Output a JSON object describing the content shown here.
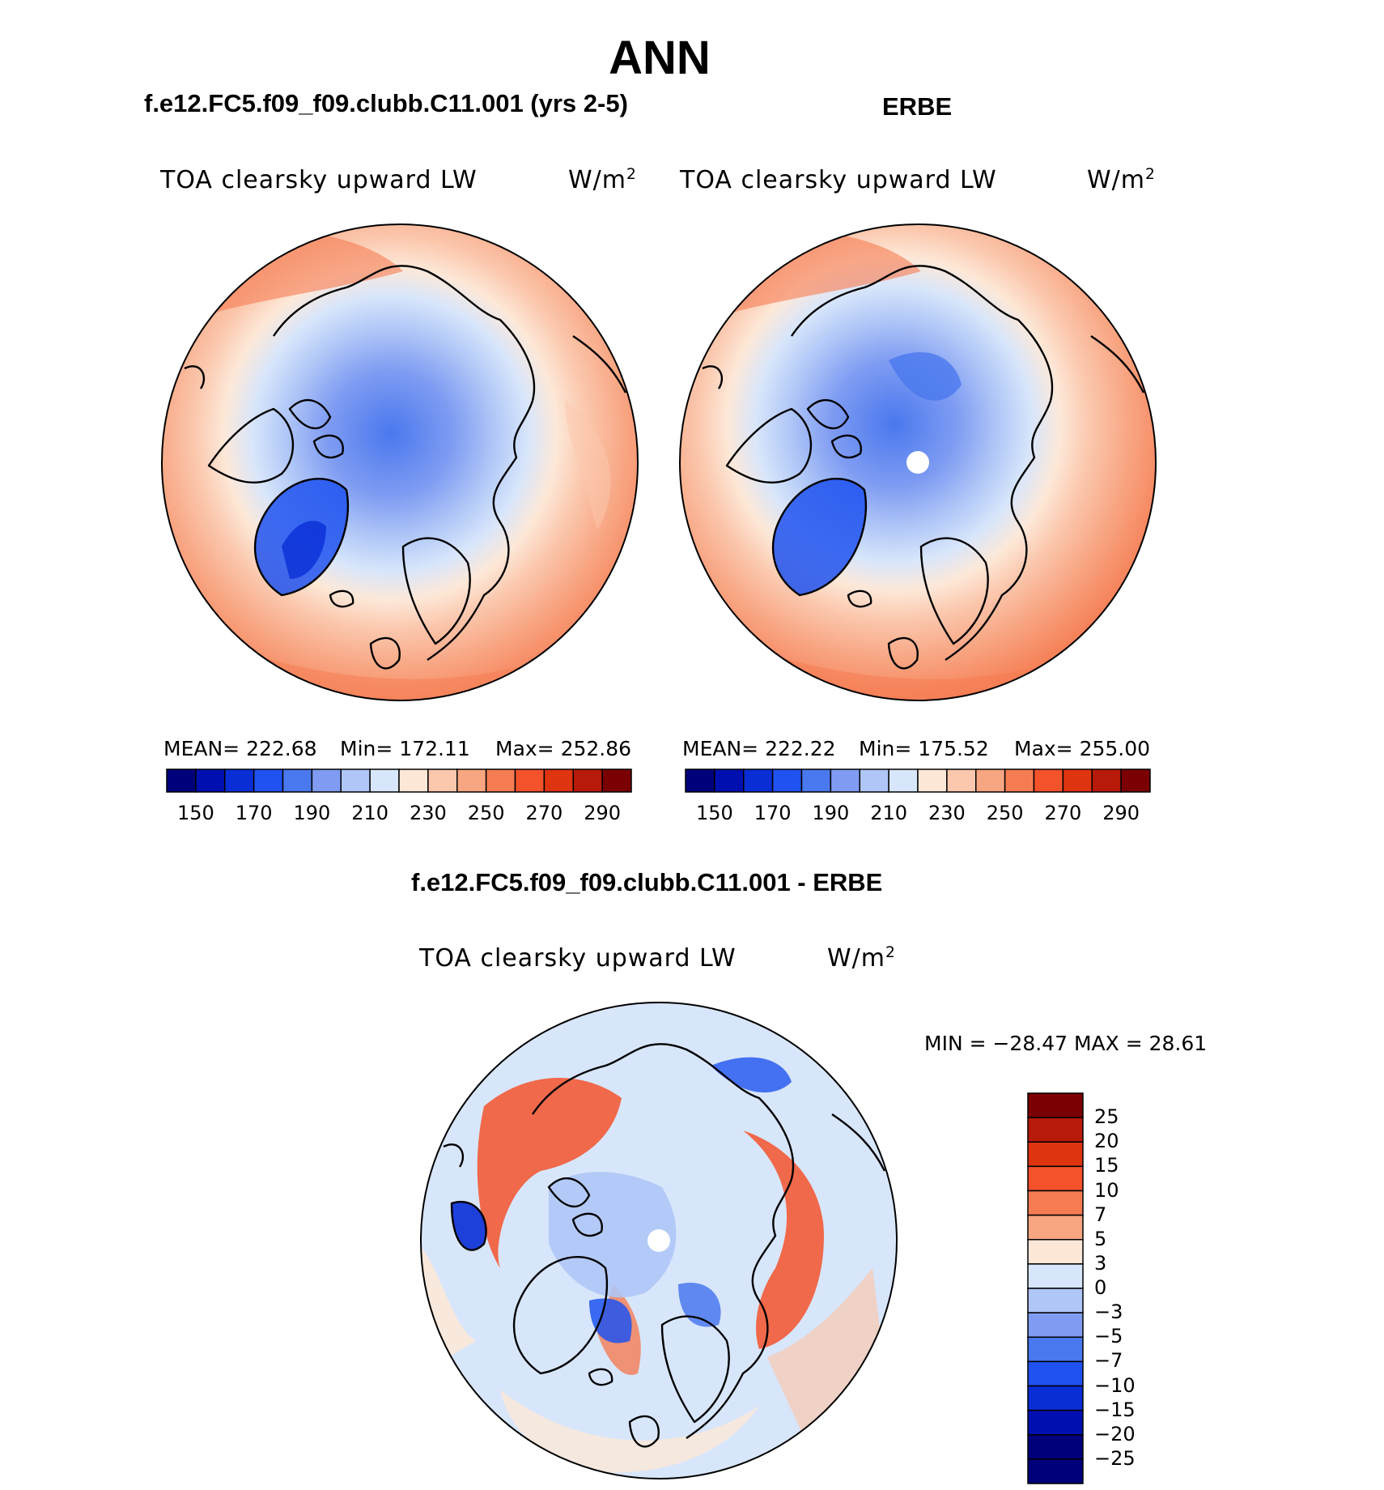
{
  "title": "ANN",
  "panels": [
    {
      "subtitle": "f.e12.FC5.f09_f09.clubb.C11.001 (yrs 2-5)",
      "variable": "TOA clearsky upward LW",
      "units": "W/m",
      "units_sup": "2",
      "stats": {
        "mean": "MEAN= 222.68",
        "min": "Min= 172.11",
        "max": "Max= 252.86"
      }
    },
    {
      "subtitle": "ERBE",
      "variable": "TOA clearsky upward LW",
      "units": "W/m",
      "units_sup": "2",
      "stats": {
        "mean": "MEAN= 222.22",
        "min": "Min= 175.52",
        "max": "Max= 255.00"
      }
    },
    {
      "subtitle": "f.e12.FC5.f09_f09.clubb.C11.001 - ERBE",
      "variable": "TOA clearsky upward LW",
      "units": "W/m",
      "units_sup": "2",
      "stats": {
        "minmax": "MIN = −28.47  MAX =   28.61"
      }
    }
  ],
  "colorbar_abs": {
    "colors": [
      "#00007a",
      "#0010b0",
      "#0a2ed6",
      "#1f52f0",
      "#4a78ee",
      "#7f9cf2",
      "#afc6f7",
      "#d8e6fb",
      "#fde8d8",
      "#fbc8ae",
      "#f8a582",
      "#f57c52",
      "#f4522a",
      "#de3410",
      "#b81a0a",
      "#7a0004"
    ],
    "tick_labels": [
      "150",
      "170",
      "190",
      "210",
      "230",
      "250",
      "270",
      "290"
    ]
  },
  "colorbar_diff": {
    "colors": [
      "#7a0004",
      "#b81a0a",
      "#de3410",
      "#f4522a",
      "#f57c52",
      "#f8a582",
      "#fde8d8",
      "#d8e6fb",
      "#afc6f7",
      "#7f9cf2",
      "#4a78ee",
      "#1f52f0",
      "#0a2ed6",
      "#0010b0",
      "#00007a"
    ],
    "tick_labels": [
      "25",
      "20",
      "15",
      "10",
      "7",
      "5",
      "3",
      "0",
      "−3",
      "−5",
      "−7",
      "−10",
      "−15",
      "−20",
      "−25"
    ]
  }
}
